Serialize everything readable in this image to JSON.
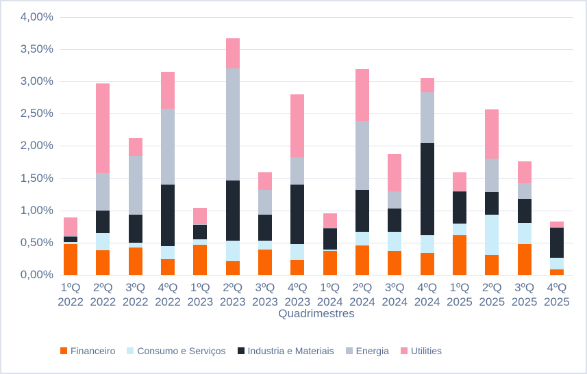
{
  "chart_data": {
    "type": "bar",
    "stacked": true,
    "title": "",
    "xlabel": "Quadrimestres",
    "ylabel": "",
    "value_unit": "percent",
    "ylim": [
      0,
      4.0
    ],
    "ytick_step": 0.5,
    "ytick_labels": [
      "0,00%",
      "0,50%",
      "1,00%",
      "1,50%",
      "2,00%",
      "2,50%",
      "3,00%",
      "3,50%",
      "4,00%"
    ],
    "grid": true,
    "legend_position": "bottom",
    "categories": [
      "1ºQ 2022",
      "2ºQ 2022",
      "3ºQ 2022",
      "4ºQ 2022",
      "1ºQ 2023",
      "2ºQ 2023",
      "3ºQ 2023",
      "4ºQ 2023",
      "1ºQ 2024",
      "2ºQ 2024",
      "3ºQ 2024",
      "4ºQ 2024",
      "1ºQ 2025",
      "2ºQ 2025",
      "3ºQ 2025",
      "4ºQ 2025"
    ],
    "series": [
      {
        "name": "Financeiro",
        "color": "#fb6602",
        "values": [
          0.48,
          0.38,
          0.42,
          0.24,
          0.47,
          0.21,
          0.39,
          0.23,
          0.37,
          0.46,
          0.37,
          0.34,
          0.61,
          0.31,
          0.48,
          0.08
        ]
      },
      {
        "name": "Consumo e Serviços",
        "color": "#cbedf9",
        "values": [
          0.03,
          0.27,
          0.08,
          0.21,
          0.08,
          0.32,
          0.14,
          0.25,
          0.02,
          0.21,
          0.3,
          0.27,
          0.19,
          0.62,
          0.33,
          0.19
        ]
      },
      {
        "name": "Industria e Materiais",
        "color": "#1f2833",
        "values": [
          0.08,
          0.35,
          0.43,
          0.95,
          0.22,
          0.93,
          0.4,
          0.92,
          0.33,
          0.64,
          0.36,
          1.44,
          0.49,
          0.35,
          0.37,
          0.46
        ]
      },
      {
        "name": "Energia",
        "color": "#b9c3d1",
        "values": [
          0.01,
          0.58,
          0.91,
          1.18,
          0.01,
          1.74,
          0.39,
          0.42,
          0.01,
          1.08,
          0.26,
          0.78,
          0.01,
          0.52,
          0.24,
          0.0
        ]
      },
      {
        "name": "Utilities",
        "color": "#f899b1",
        "values": [
          0.29,
          1.39,
          0.28,
          0.57,
          0.26,
          0.47,
          0.27,
          0.98,
          0.22,
          0.8,
          0.59,
          0.22,
          0.29,
          0.77,
          0.34,
          0.1
        ]
      }
    ]
  },
  "colors": {
    "background": "#ffffff",
    "border": "#dce1ea",
    "gridline": "#dce1ea",
    "axis_text": "#5a7094"
  }
}
